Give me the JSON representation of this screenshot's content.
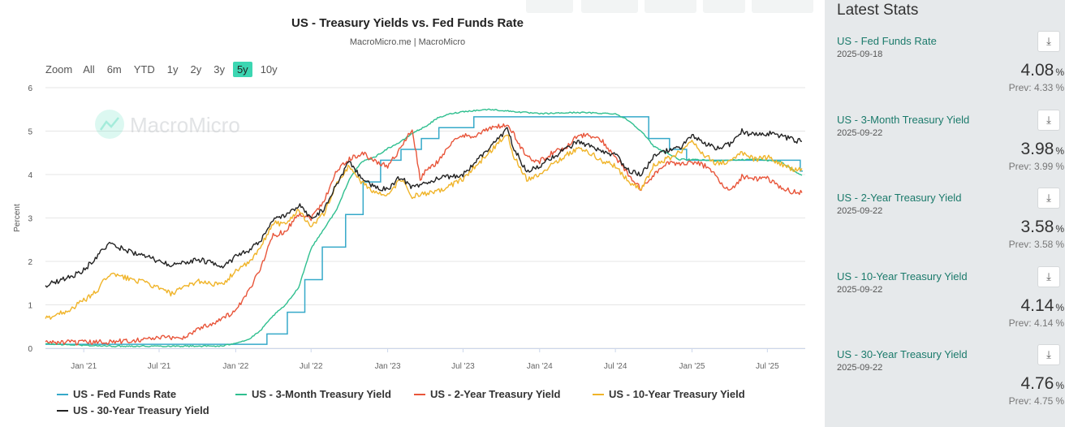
{
  "chart_data": {
    "type": "line",
    "title": "US - Treasury Yields vs. Fed Funds Rate",
    "subtitle": "MacroMicro.me | MacroMicro",
    "watermark": "MacroMicro",
    "ylabel": "Percent",
    "ylim": [
      0,
      6
    ],
    "xlim": [
      "2020-10-01",
      "2025-09-30"
    ],
    "y_ticks": [
      "0",
      "1",
      "2",
      "3",
      "4",
      "5",
      "6"
    ],
    "x_ticks": [
      {
        "label": "Jan '21",
        "date": "2021-01-01"
      },
      {
        "label": "Jul '21",
        "date": "2021-07-01"
      },
      {
        "label": "Jan '22",
        "date": "2022-01-01"
      },
      {
        "label": "Jul '22",
        "date": "2022-07-01"
      },
      {
        "label": "Jan '23",
        "date": "2023-01-01"
      },
      {
        "label": "Jul '23",
        "date": "2023-07-01"
      },
      {
        "label": "Jan '24",
        "date": "2024-01-01"
      },
      {
        "label": "Jul '24",
        "date": "2024-07-01"
      },
      {
        "label": "Jan '25",
        "date": "2025-01-01"
      },
      {
        "label": "Jul '25",
        "date": "2025-07-01"
      }
    ],
    "grid": true,
    "legend_position": "bottom",
    "series": [
      {
        "name": "US - Fed Funds Rate",
        "color": "#36a9c9",
        "step": true,
        "points": [
          [
            "2020-10-01",
            0.09
          ],
          [
            "2022-03-17",
            0.33
          ],
          [
            "2022-05-05",
            0.83
          ],
          [
            "2022-06-16",
            1.58
          ],
          [
            "2022-07-28",
            2.33
          ],
          [
            "2022-09-22",
            3.08
          ],
          [
            "2022-11-03",
            3.83
          ],
          [
            "2022-12-15",
            4.33
          ],
          [
            "2023-02-02",
            4.58
          ],
          [
            "2023-03-23",
            4.83
          ],
          [
            "2023-05-04",
            5.08
          ],
          [
            "2023-07-27",
            5.33
          ],
          [
            "2024-09-19",
            4.83
          ],
          [
            "2024-11-08",
            4.58
          ],
          [
            "2024-12-19",
            4.33
          ],
          [
            "2025-09-18",
            4.08
          ],
          [
            "2025-09-24",
            4.08
          ]
        ]
      },
      {
        "name": "US - 3-Month Treasury Yield",
        "color": "#2fbf8f",
        "points": [
          [
            "2020-10-01",
            0.1
          ],
          [
            "2021-03-01",
            0.05
          ],
          [
            "2021-07-01",
            0.05
          ],
          [
            "2021-12-01",
            0.05
          ],
          [
            "2022-02-01",
            0.2
          ],
          [
            "2022-03-01",
            0.4
          ],
          [
            "2022-04-01",
            0.75
          ],
          [
            "2022-05-01",
            1.0
          ],
          [
            "2022-06-01",
            1.4
          ],
          [
            "2022-07-01",
            2.3
          ],
          [
            "2022-08-01",
            2.75
          ],
          [
            "2022-09-01",
            3.2
          ],
          [
            "2022-10-01",
            3.9
          ],
          [
            "2022-11-01",
            4.3
          ],
          [
            "2022-12-01",
            4.4
          ],
          [
            "2023-01-01",
            4.6
          ],
          [
            "2023-02-01",
            4.75
          ],
          [
            "2023-03-01",
            4.95
          ],
          [
            "2023-04-01",
            5.1
          ],
          [
            "2023-05-01",
            5.3
          ],
          [
            "2023-06-01",
            5.4
          ],
          [
            "2023-07-01",
            5.45
          ],
          [
            "2023-09-01",
            5.5
          ],
          [
            "2023-11-01",
            5.45
          ],
          [
            "2024-01-01",
            5.4
          ],
          [
            "2024-04-01",
            5.43
          ],
          [
            "2024-07-01",
            5.4
          ],
          [
            "2024-08-01",
            5.25
          ],
          [
            "2024-09-01",
            5.0
          ],
          [
            "2024-10-01",
            4.65
          ],
          [
            "2024-11-01",
            4.5
          ],
          [
            "2024-12-01",
            4.35
          ],
          [
            "2025-03-01",
            4.32
          ],
          [
            "2025-06-01",
            4.35
          ],
          [
            "2025-08-01",
            4.3
          ],
          [
            "2025-09-01",
            4.1
          ],
          [
            "2025-09-22",
            3.98
          ]
        ]
      },
      {
        "name": "US - 2-Year Treasury Yield",
        "color": "#e8553a",
        "points": [
          [
            "2020-10-01",
            0.14
          ],
          [
            "2021-01-01",
            0.13
          ],
          [
            "2021-04-01",
            0.16
          ],
          [
            "2021-07-01",
            0.24
          ],
          [
            "2021-09-01",
            0.25
          ],
          [
            "2021-10-01",
            0.45
          ],
          [
            "2021-11-01",
            0.55
          ],
          [
            "2021-12-01",
            0.7
          ],
          [
            "2022-01-01",
            0.85
          ],
          [
            "2022-02-01",
            1.3
          ],
          [
            "2022-03-01",
            1.85
          ],
          [
            "2022-04-01",
            2.6
          ],
          [
            "2022-05-01",
            2.7
          ],
          [
            "2022-06-01",
            3.1
          ],
          [
            "2022-07-01",
            3.0
          ],
          [
            "2022-08-01",
            3.4
          ],
          [
            "2022-09-01",
            4.1
          ],
          [
            "2022-10-01",
            4.35
          ],
          [
            "2022-11-01",
            4.5
          ],
          [
            "2022-12-01",
            4.3
          ],
          [
            "2023-01-01",
            4.2
          ],
          [
            "2023-02-01",
            4.6
          ],
          [
            "2023-03-01",
            5.05
          ],
          [
            "2023-03-20",
            3.9
          ],
          [
            "2023-04-01",
            4.05
          ],
          [
            "2023-05-01",
            4.3
          ],
          [
            "2023-06-01",
            4.7
          ],
          [
            "2023-07-01",
            4.9
          ],
          [
            "2023-08-01",
            4.9
          ],
          [
            "2023-09-01",
            5.05
          ],
          [
            "2023-10-15",
            5.15
          ],
          [
            "2023-11-01",
            4.9
          ],
          [
            "2023-12-01",
            4.4
          ],
          [
            "2024-01-01",
            4.3
          ],
          [
            "2024-02-01",
            4.5
          ],
          [
            "2024-03-01",
            4.6
          ],
          [
            "2024-04-01",
            4.9
          ],
          [
            "2024-05-01",
            4.9
          ],
          [
            "2024-06-01",
            4.75
          ],
          [
            "2024-07-01",
            4.4
          ],
          [
            "2024-08-01",
            4.0
          ],
          [
            "2024-09-01",
            3.65
          ],
          [
            "2024-10-01",
            4.0
          ],
          [
            "2024-11-01",
            4.25
          ],
          [
            "2024-12-01",
            4.25
          ],
          [
            "2025-01-01",
            4.3
          ],
          [
            "2025-02-01",
            4.2
          ],
          [
            "2025-03-01",
            3.95
          ],
          [
            "2025-04-01",
            3.6
          ],
          [
            "2025-05-01",
            3.95
          ],
          [
            "2025-06-01",
            3.9
          ],
          [
            "2025-07-01",
            3.9
          ],
          [
            "2025-08-01",
            3.7
          ],
          [
            "2025-09-01",
            3.6
          ],
          [
            "2025-09-22",
            3.58
          ]
        ]
      },
      {
        "name": "US - 10-Year Treasury Yield",
        "color": "#f0b429",
        "points": [
          [
            "2020-10-01",
            0.68
          ],
          [
            "2020-12-01",
            0.9
          ],
          [
            "2021-01-01",
            1.1
          ],
          [
            "2021-02-01",
            1.3
          ],
          [
            "2021-03-01",
            1.7
          ],
          [
            "2021-04-01",
            1.65
          ],
          [
            "2021-06-01",
            1.5
          ],
          [
            "2021-08-01",
            1.25
          ],
          [
            "2021-10-01",
            1.55
          ],
          [
            "2021-12-01",
            1.45
          ],
          [
            "2022-01-01",
            1.8
          ],
          [
            "2022-02-01",
            1.95
          ],
          [
            "2022-03-01",
            2.3
          ],
          [
            "2022-04-01",
            2.9
          ],
          [
            "2022-05-01",
            2.85
          ],
          [
            "2022-06-01",
            3.2
          ],
          [
            "2022-07-01",
            2.8
          ],
          [
            "2022-08-01",
            3.1
          ],
          [
            "2022-09-01",
            3.8
          ],
          [
            "2022-10-01",
            4.2
          ],
          [
            "2022-11-01",
            3.8
          ],
          [
            "2022-12-01",
            3.6
          ],
          [
            "2023-01-01",
            3.5
          ],
          [
            "2023-02-01",
            3.9
          ],
          [
            "2023-03-01",
            3.5
          ],
          [
            "2023-05-01",
            3.6
          ],
          [
            "2023-07-01",
            3.9
          ],
          [
            "2023-08-01",
            4.2
          ],
          [
            "2023-09-01",
            4.5
          ],
          [
            "2023-10-15",
            4.95
          ],
          [
            "2023-11-01",
            4.4
          ],
          [
            "2023-12-01",
            3.9
          ],
          [
            "2024-01-01",
            4.0
          ],
          [
            "2024-02-01",
            4.25
          ],
          [
            "2024-04-01",
            4.6
          ],
          [
            "2024-05-01",
            4.5
          ],
          [
            "2024-06-01",
            4.3
          ],
          [
            "2024-07-01",
            4.2
          ],
          [
            "2024-08-01",
            3.85
          ],
          [
            "2024-09-01",
            3.65
          ],
          [
            "2024-10-01",
            4.2
          ],
          [
            "2024-11-01",
            4.35
          ],
          [
            "2024-12-01",
            4.5
          ],
          [
            "2025-01-01",
            4.75
          ],
          [
            "2025-02-01",
            4.45
          ],
          [
            "2025-03-01",
            4.25
          ],
          [
            "2025-04-01",
            4.3
          ],
          [
            "2025-05-01",
            4.5
          ],
          [
            "2025-06-01",
            4.35
          ],
          [
            "2025-07-01",
            4.4
          ],
          [
            "2025-08-01",
            4.25
          ],
          [
            "2025-09-01",
            4.1
          ],
          [
            "2025-09-22",
            4.14
          ]
        ]
      },
      {
        "name": "US - 30-Year Treasury Yield",
        "color": "#222222",
        "points": [
          [
            "2020-10-01",
            1.45
          ],
          [
            "2020-12-01",
            1.65
          ],
          [
            "2021-01-01",
            1.8
          ],
          [
            "2021-02-01",
            2.1
          ],
          [
            "2021-03-01",
            2.4
          ],
          [
            "2021-04-01",
            2.3
          ],
          [
            "2021-06-01",
            2.1
          ],
          [
            "2021-08-01",
            1.9
          ],
          [
            "2021-10-01",
            2.05
          ],
          [
            "2021-12-01",
            1.9
          ],
          [
            "2022-01-01",
            2.1
          ],
          [
            "2022-02-01",
            2.25
          ],
          [
            "2022-03-01",
            2.45
          ],
          [
            "2022-04-01",
            2.95
          ],
          [
            "2022-05-01",
            3.05
          ],
          [
            "2022-06-01",
            3.3
          ],
          [
            "2022-07-01",
            3.0
          ],
          [
            "2022-08-01",
            3.2
          ],
          [
            "2022-09-01",
            3.8
          ],
          [
            "2022-10-01",
            4.3
          ],
          [
            "2022-11-01",
            3.9
          ],
          [
            "2022-12-01",
            3.7
          ],
          [
            "2023-01-01",
            3.65
          ],
          [
            "2023-02-01",
            3.95
          ],
          [
            "2023-03-01",
            3.7
          ],
          [
            "2023-05-01",
            3.9
          ],
          [
            "2023-07-01",
            4.0
          ],
          [
            "2023-08-01",
            4.3
          ],
          [
            "2023-09-01",
            4.6
          ],
          [
            "2023-10-15",
            5.05
          ],
          [
            "2023-11-01",
            4.6
          ],
          [
            "2023-12-01",
            4.05
          ],
          [
            "2024-01-01",
            4.2
          ],
          [
            "2024-02-01",
            4.4
          ],
          [
            "2024-04-01",
            4.75
          ],
          [
            "2024-05-01",
            4.65
          ],
          [
            "2024-06-01",
            4.5
          ],
          [
            "2024-07-01",
            4.45
          ],
          [
            "2024-08-01",
            4.1
          ],
          [
            "2024-09-01",
            4.0
          ],
          [
            "2024-10-01",
            4.4
          ],
          [
            "2024-11-01",
            4.55
          ],
          [
            "2024-12-01",
            4.6
          ],
          [
            "2025-01-01",
            4.9
          ],
          [
            "2025-02-01",
            4.7
          ],
          [
            "2025-03-01",
            4.6
          ],
          [
            "2025-04-01",
            4.7
          ],
          [
            "2025-05-01",
            5.0
          ],
          [
            "2025-06-01",
            4.9
          ],
          [
            "2025-07-01",
            4.95
          ],
          [
            "2025-08-01",
            4.9
          ],
          [
            "2025-09-01",
            4.8
          ],
          [
            "2025-09-22",
            4.76
          ]
        ]
      }
    ]
  },
  "range_selector": {
    "zoom_label": "Zoom",
    "buttons": [
      "All",
      "6m",
      "YTD",
      "1y",
      "2y",
      "3y",
      "5y",
      "10y"
    ],
    "active": "5y"
  },
  "sidebar": {
    "title": "Latest Stats",
    "download_glyph": "⤓",
    "stats": [
      {
        "name": "US - Fed Funds Rate",
        "date": "2025-09-18",
        "value": "4.08",
        "unit": "%",
        "prev": "Prev: 4.33",
        "prev_unit": "%"
      },
      {
        "name": "US - 3-Month Treasury Yield",
        "date": "2025-09-22",
        "value": "3.98",
        "unit": "%",
        "prev": "Prev: 3.99",
        "prev_unit": "%"
      },
      {
        "name": "US - 2-Year Treasury Yield",
        "date": "2025-09-22",
        "value": "3.58",
        "unit": "%",
        "prev": "Prev: 3.58",
        "prev_unit": "%"
      },
      {
        "name": "US - 10-Year Treasury Yield",
        "date": "2025-09-22",
        "value": "4.14",
        "unit": "%",
        "prev": "Prev: 4.14",
        "prev_unit": "%"
      },
      {
        "name": "US - 30-Year Treasury Yield",
        "date": "2025-09-22",
        "value": "4.76",
        "unit": "%",
        "prev": "Prev: 4.75",
        "prev_unit": "%"
      }
    ]
  }
}
